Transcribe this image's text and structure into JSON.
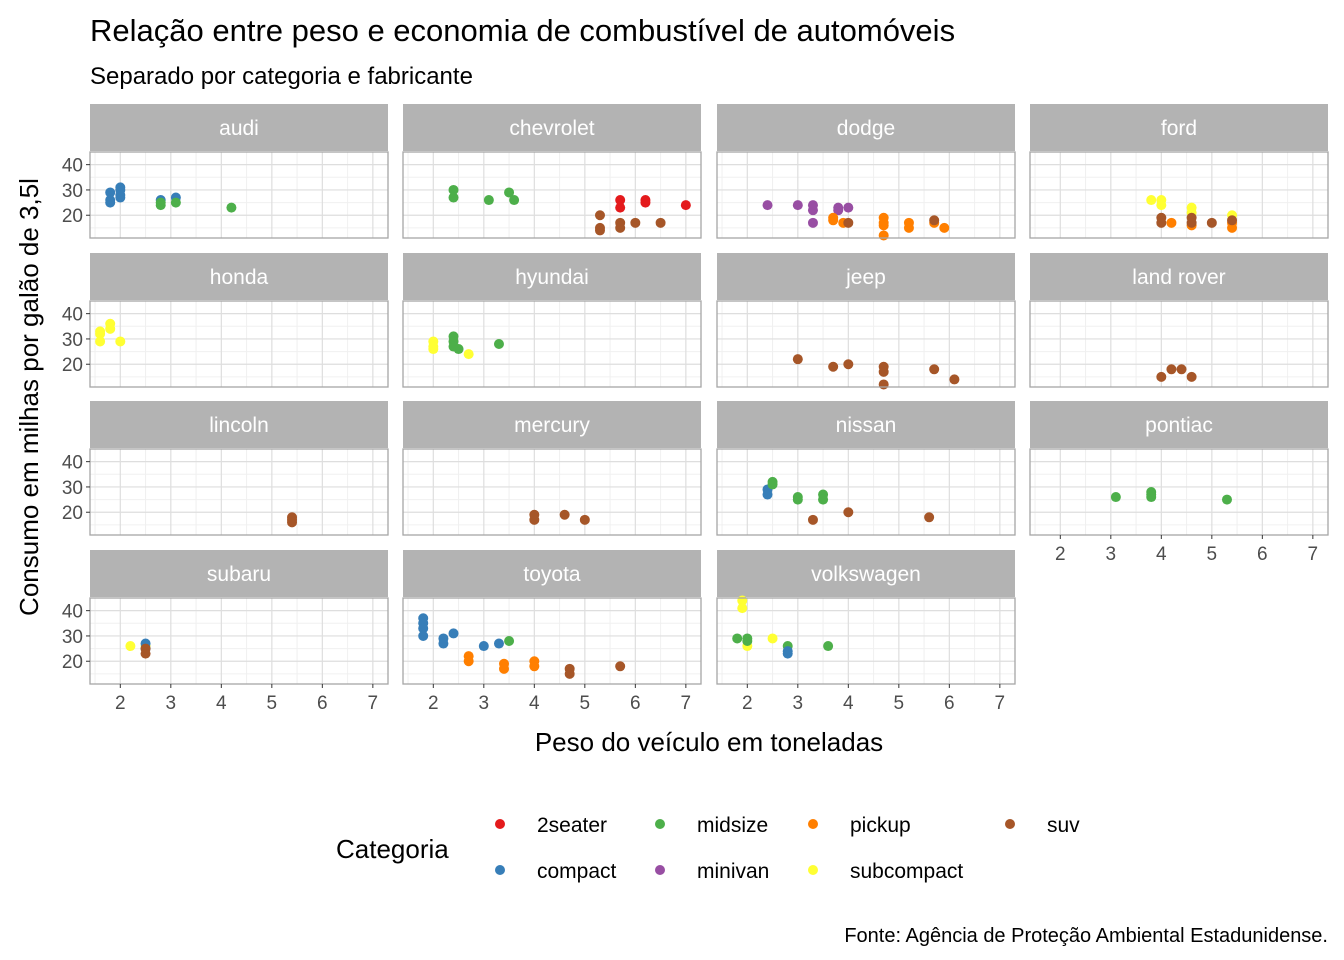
{
  "chart_data": {
    "type": "scatter",
    "title": "Relação entre peso e economia de combustível de automóveis",
    "subtitle": "Separado por categoria e fabricante",
    "xlabel": "Peso do veículo em toneladas",
    "ylabel": "Consumo em milhas por galão de 3,5l",
    "caption": "Fonte: Agência de Proteção Ambiental Estadunidense.",
    "xlim": [
      1.4,
      7.3
    ],
    "ylim": [
      11,
      45
    ],
    "x_ticks": [
      "2",
      "3",
      "4",
      "5",
      "6",
      "7"
    ],
    "y_ticks": [
      "20",
      "30",
      "40"
    ],
    "grid": true,
    "legend": {
      "title": "Categoria",
      "position": "bottom",
      "items": [
        {
          "name": "2seater",
          "color": "#E41A1C"
        },
        {
          "name": "midsize",
          "color": "#4DAF4A"
        },
        {
          "name": "pickup",
          "color": "#FF7F00"
        },
        {
          "name": "suv",
          "color": "#A65628"
        },
        {
          "name": "compact",
          "color": "#377EB8"
        },
        {
          "name": "minivan",
          "color": "#984EA3"
        },
        {
          "name": "subcompact",
          "color": "#FFFF33"
        }
      ]
    },
    "panels": [
      {
        "name": "audi",
        "points": [
          {
            "x": 1.8,
            "y": 29,
            "c": "compact"
          },
          {
            "x": 1.8,
            "y": 26,
            "c": "compact"
          },
          {
            "x": 1.8,
            "y": 25,
            "c": "compact"
          },
          {
            "x": 2.0,
            "y": 31,
            "c": "compact"
          },
          {
            "x": 2.0,
            "y": 30,
            "c": "compact"
          },
          {
            "x": 2.0,
            "y": 28,
            "c": "compact"
          },
          {
            "x": 2.0,
            "y": 27,
            "c": "compact"
          },
          {
            "x": 2.8,
            "y": 26,
            "c": "compact"
          },
          {
            "x": 3.1,
            "y": 27,
            "c": "compact"
          },
          {
            "x": 2.8,
            "y": 25,
            "c": "midsize"
          },
          {
            "x": 2.8,
            "y": 24,
            "c": "midsize"
          },
          {
            "x": 3.1,
            "y": 25,
            "c": "midsize"
          },
          {
            "x": 4.2,
            "y": 23,
            "c": "midsize"
          }
        ]
      },
      {
        "name": "chevrolet",
        "points": [
          {
            "x": 5.7,
            "y": 26,
            "c": "2seater"
          },
          {
            "x": 5.7,
            "y": 23,
            "c": "2seater"
          },
          {
            "x": 6.2,
            "y": 26,
            "c": "2seater"
          },
          {
            "x": 6.2,
            "y": 25,
            "c": "2seater"
          },
          {
            "x": 7.0,
            "y": 24,
            "c": "2seater"
          },
          {
            "x": 2.4,
            "y": 30,
            "c": "midsize"
          },
          {
            "x": 2.4,
            "y": 27,
            "c": "midsize"
          },
          {
            "x": 3.1,
            "y": 26,
            "c": "midsize"
          },
          {
            "x": 3.5,
            "y": 29,
            "c": "midsize"
          },
          {
            "x": 3.6,
            "y": 26,
            "c": "midsize"
          },
          {
            "x": 5.3,
            "y": 20,
            "c": "suv"
          },
          {
            "x": 5.3,
            "y": 15,
            "c": "suv"
          },
          {
            "x": 5.3,
            "y": 14,
            "c": "suv"
          },
          {
            "x": 5.7,
            "y": 17,
            "c": "suv"
          },
          {
            "x": 5.7,
            "y": 15,
            "c": "suv"
          },
          {
            "x": 6.0,
            "y": 17,
            "c": "suv"
          },
          {
            "x": 6.5,
            "y": 17,
            "c": "suv"
          }
        ]
      },
      {
        "name": "dodge",
        "points": [
          {
            "x": 2.4,
            "y": 24,
            "c": "minivan"
          },
          {
            "x": 3.0,
            "y": 24,
            "c": "minivan"
          },
          {
            "x": 3.3,
            "y": 22,
            "c": "minivan"
          },
          {
            "x": 3.3,
            "y": 24,
            "c": "minivan"
          },
          {
            "x": 3.3,
            "y": 17,
            "c": "minivan"
          },
          {
            "x": 3.8,
            "y": 22,
            "c": "minivan"
          },
          {
            "x": 3.8,
            "y": 23,
            "c": "minivan"
          },
          {
            "x": 4.0,
            "y": 23,
            "c": "minivan"
          },
          {
            "x": 3.7,
            "y": 19,
            "c": "pickup"
          },
          {
            "x": 3.7,
            "y": 18,
            "c": "pickup"
          },
          {
            "x": 3.9,
            "y": 17,
            "c": "pickup"
          },
          {
            "x": 4.7,
            "y": 19,
            "c": "pickup"
          },
          {
            "x": 4.7,
            "y": 17,
            "c": "pickup"
          },
          {
            "x": 4.7,
            "y": 16,
            "c": "pickup"
          },
          {
            "x": 4.7,
            "y": 12,
            "c": "pickup"
          },
          {
            "x": 5.2,
            "y": 17,
            "c": "pickup"
          },
          {
            "x": 5.2,
            "y": 15,
            "c": "pickup"
          },
          {
            "x": 5.7,
            "y": 17,
            "c": "pickup"
          },
          {
            "x": 5.9,
            "y": 15,
            "c": "pickup"
          },
          {
            "x": 4.0,
            "y": 17,
            "c": "suv"
          },
          {
            "x": 5.7,
            "y": 18,
            "c": "suv"
          }
        ]
      },
      {
        "name": "ford",
        "points": [
          {
            "x": 3.8,
            "y": 26,
            "c": "subcompact"
          },
          {
            "x": 4.0,
            "y": 26,
            "c": "subcompact"
          },
          {
            "x": 4.0,
            "y": 24,
            "c": "subcompact"
          },
          {
            "x": 4.6,
            "y": 23,
            "c": "subcompact"
          },
          {
            "x": 4.6,
            "y": 21,
            "c": "subcompact"
          },
          {
            "x": 5.4,
            "y": 20,
            "c": "subcompact"
          },
          {
            "x": 4.2,
            "y": 17,
            "c": "pickup"
          },
          {
            "x": 4.6,
            "y": 16,
            "c": "pickup"
          },
          {
            "x": 5.4,
            "y": 15,
            "c": "pickup"
          },
          {
            "x": 5.4,
            "y": 17,
            "c": "pickup"
          },
          {
            "x": 4.0,
            "y": 19,
            "c": "suv"
          },
          {
            "x": 4.0,
            "y": 17,
            "c": "suv"
          },
          {
            "x": 4.6,
            "y": 19,
            "c": "suv"
          },
          {
            "x": 4.6,
            "y": 17,
            "c": "suv"
          },
          {
            "x": 5.0,
            "y": 17,
            "c": "suv"
          },
          {
            "x": 5.4,
            "y": 18,
            "c": "suv"
          }
        ]
      },
      {
        "name": "honda",
        "points": [
          {
            "x": 1.6,
            "y": 33,
            "c": "subcompact"
          },
          {
            "x": 1.6,
            "y": 32,
            "c": "subcompact"
          },
          {
            "x": 1.6,
            "y": 29,
            "c": "subcompact"
          },
          {
            "x": 1.8,
            "y": 36,
            "c": "subcompact"
          },
          {
            "x": 1.8,
            "y": 34,
            "c": "subcompact"
          },
          {
            "x": 2.0,
            "y": 29,
            "c": "subcompact"
          }
        ]
      },
      {
        "name": "hyundai",
        "points": [
          {
            "x": 2.0,
            "y": 29,
            "c": "subcompact"
          },
          {
            "x": 2.0,
            "y": 27,
            "c": "subcompact"
          },
          {
            "x": 2.0,
            "y": 26,
            "c": "subcompact"
          },
          {
            "x": 2.7,
            "y": 24,
            "c": "subcompact"
          },
          {
            "x": 2.4,
            "y": 31,
            "c": "midsize"
          },
          {
            "x": 2.4,
            "y": 29,
            "c": "midsize"
          },
          {
            "x": 2.4,
            "y": 27,
            "c": "midsize"
          },
          {
            "x": 2.5,
            "y": 26,
            "c": "midsize"
          },
          {
            "x": 3.3,
            "y": 28,
            "c": "midsize"
          }
        ]
      },
      {
        "name": "jeep",
        "points": [
          {
            "x": 3.0,
            "y": 22,
            "c": "suv"
          },
          {
            "x": 3.7,
            "y": 19,
            "c": "suv"
          },
          {
            "x": 4.0,
            "y": 20,
            "c": "suv"
          },
          {
            "x": 4.7,
            "y": 19,
            "c": "suv"
          },
          {
            "x": 4.7,
            "y": 17,
            "c": "suv"
          },
          {
            "x": 4.7,
            "y": 12,
            "c": "suv"
          },
          {
            "x": 5.7,
            "y": 18,
            "c": "suv"
          },
          {
            "x": 6.1,
            "y": 14,
            "c": "suv"
          }
        ]
      },
      {
        "name": "land rover",
        "points": [
          {
            "x": 4.0,
            "y": 15,
            "c": "suv"
          },
          {
            "x": 4.2,
            "y": 18,
            "c": "suv"
          },
          {
            "x": 4.4,
            "y": 18,
            "c": "suv"
          },
          {
            "x": 4.6,
            "y": 15,
            "c": "suv"
          }
        ]
      },
      {
        "name": "lincoln",
        "points": [
          {
            "x": 5.4,
            "y": 18,
            "c": "suv"
          },
          {
            "x": 5.4,
            "y": 17,
            "c": "suv"
          },
          {
            "x": 5.4,
            "y": 16,
            "c": "suv"
          }
        ]
      },
      {
        "name": "mercury",
        "points": [
          {
            "x": 4.0,
            "y": 19,
            "c": "suv"
          },
          {
            "x": 4.0,
            "y": 17,
            "c": "suv"
          },
          {
            "x": 4.6,
            "y": 19,
            "c": "suv"
          },
          {
            "x": 5.0,
            "y": 17,
            "c": "suv"
          }
        ]
      },
      {
        "name": "nissan",
        "points": [
          {
            "x": 2.4,
            "y": 29,
            "c": "compact"
          },
          {
            "x": 2.4,
            "y": 27,
            "c": "compact"
          },
          {
            "x": 2.5,
            "y": 32,
            "c": "midsize"
          },
          {
            "x": 2.5,
            "y": 31,
            "c": "midsize"
          },
          {
            "x": 3.0,
            "y": 26,
            "c": "midsize"
          },
          {
            "x": 3.0,
            "y": 25,
            "c": "midsize"
          },
          {
            "x": 3.5,
            "y": 27,
            "c": "midsize"
          },
          {
            "x": 3.5,
            "y": 25,
            "c": "midsize"
          },
          {
            "x": 3.3,
            "y": 17,
            "c": "suv"
          },
          {
            "x": 4.0,
            "y": 20,
            "c": "suv"
          },
          {
            "x": 5.6,
            "y": 18,
            "c": "suv"
          }
        ]
      },
      {
        "name": "pontiac",
        "points": [
          {
            "x": 3.1,
            "y": 26,
            "c": "midsize"
          },
          {
            "x": 3.8,
            "y": 28,
            "c": "midsize"
          },
          {
            "x": 3.8,
            "y": 27,
            "c": "midsize"
          },
          {
            "x": 3.8,
            "y": 26,
            "c": "midsize"
          },
          {
            "x": 5.3,
            "y": 25,
            "c": "midsize"
          }
        ]
      },
      {
        "name": "subaru",
        "points": [
          {
            "x": 2.2,
            "y": 26,
            "c": "subcompact"
          },
          {
            "x": 2.5,
            "y": 26,
            "c": "subcompact"
          },
          {
            "x": 2.5,
            "y": 27,
            "c": "compact"
          },
          {
            "x": 2.5,
            "y": 25,
            "c": "compact"
          },
          {
            "x": 2.5,
            "y": 25,
            "c": "suv"
          },
          {
            "x": 2.5,
            "y": 23,
            "c": "suv"
          }
        ]
      },
      {
        "name": "toyota",
        "points": [
          {
            "x": 1.8,
            "y": 37,
            "c": "compact"
          },
          {
            "x": 1.8,
            "y": 35,
            "c": "compact"
          },
          {
            "x": 1.8,
            "y": 33,
            "c": "compact"
          },
          {
            "x": 1.8,
            "y": 30,
            "c": "compact"
          },
          {
            "x": 2.2,
            "y": 29,
            "c": "compact"
          },
          {
            "x": 2.2,
            "y": 27,
            "c": "compact"
          },
          {
            "x": 2.4,
            "y": 31,
            "c": "compact"
          },
          {
            "x": 3.0,
            "y": 26,
            "c": "compact"
          },
          {
            "x": 3.3,
            "y": 27,
            "c": "compact"
          },
          {
            "x": 3.5,
            "y": 28,
            "c": "midsize"
          },
          {
            "x": 2.7,
            "y": 22,
            "c": "pickup"
          },
          {
            "x": 2.7,
            "y": 20,
            "c": "pickup"
          },
          {
            "x": 3.4,
            "y": 19,
            "c": "pickup"
          },
          {
            "x": 3.4,
            "y": 17,
            "c": "pickup"
          },
          {
            "x": 4.0,
            "y": 20,
            "c": "pickup"
          },
          {
            "x": 4.0,
            "y": 18,
            "c": "pickup"
          },
          {
            "x": 4.7,
            "y": 17,
            "c": "suv"
          },
          {
            "x": 4.7,
            "y": 15,
            "c": "suv"
          },
          {
            "x": 5.7,
            "y": 18,
            "c": "suv"
          }
        ]
      },
      {
        "name": "volkswagen",
        "points": [
          {
            "x": 1.9,
            "y": 44,
            "c": "subcompact"
          },
          {
            "x": 1.9,
            "y": 41,
            "c": "subcompact"
          },
          {
            "x": 2.0,
            "y": 26,
            "c": "subcompact"
          },
          {
            "x": 2.5,
            "y": 29,
            "c": "subcompact"
          },
          {
            "x": 1.8,
            "y": 29,
            "c": "midsize"
          },
          {
            "x": 2.0,
            "y": 29,
            "c": "midsize"
          },
          {
            "x": 2.0,
            "y": 28,
            "c": "midsize"
          },
          {
            "x": 2.8,
            "y": 26,
            "c": "midsize"
          },
          {
            "x": 3.6,
            "y": 26,
            "c": "midsize"
          },
          {
            "x": 2.8,
            "y": 24,
            "c": "compact"
          },
          {
            "x": 2.8,
            "y": 23,
            "c": "compact"
          }
        ]
      }
    ]
  }
}
